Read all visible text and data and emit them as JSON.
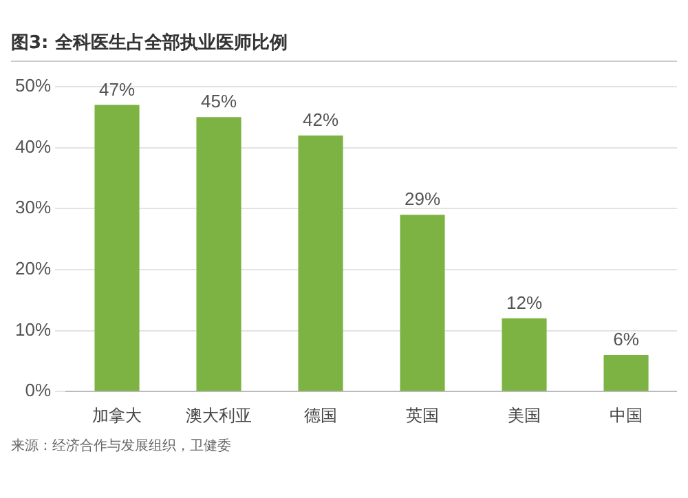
{
  "chart_data": {
    "type": "bar",
    "title": "图3: 全科医生占全部执业医师比例",
    "categories": [
      "加拿大",
      "澳大利亚",
      "德国",
      "英国",
      "美国",
      "中国"
    ],
    "values": [
      47,
      45,
      42,
      29,
      12,
      6
    ],
    "value_labels": [
      "47%",
      "45%",
      "42%",
      "29%",
      "12%",
      "6%"
    ],
    "color": "#7cb342",
    "ylim": [
      0,
      50
    ],
    "yticks": [
      {
        "value": 0,
        "label": "0%"
      },
      {
        "value": 10,
        "label": "10%"
      },
      {
        "value": 20,
        "label": "20%"
      },
      {
        "value": 30,
        "label": "30%"
      },
      {
        "value": 40,
        "label": "40%"
      },
      {
        "value": 50,
        "label": "50%"
      }
    ],
    "grid": "y",
    "annotations": [
      "来源：经济合作与发展组织，卫健委"
    ]
  }
}
